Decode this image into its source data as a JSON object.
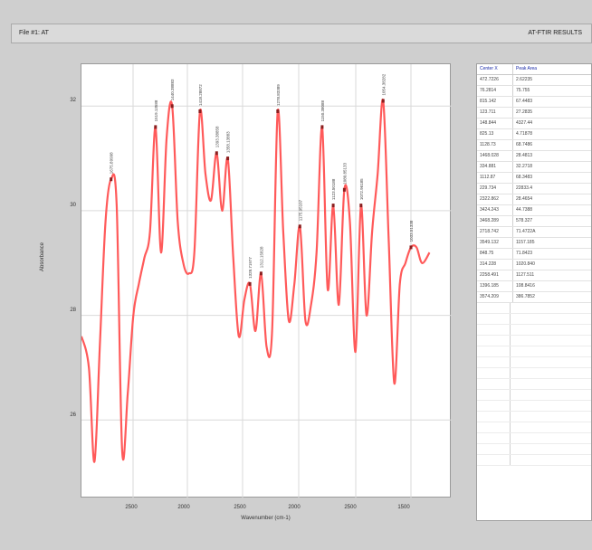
{
  "window": {
    "title_left": "File #1: AT",
    "title_right": "AT-FTIR RESULTS"
  },
  "chart": {
    "xlabel": "Wavenumber (cm-1)",
    "ylabel": "Absorbance",
    "xticks": [
      "2500",
      "2000",
      "2500",
      "2000",
      "2500",
      "1500",
      "1000"
    ],
    "yticks": [
      "32",
      "30",
      "28",
      "26"
    ],
    "line_color": "#ff5a5a"
  },
  "chart_data": {
    "type": "line",
    "series": [
      {
        "values": [
          [
            0.0,
            27.6
          ],
          [
            0.02,
            27.0
          ],
          [
            0.035,
            25.2
          ],
          [
            0.05,
            27.5
          ],
          [
            0.065,
            29.8
          ],
          [
            0.08,
            30.6
          ],
          [
            0.095,
            30.1
          ],
          [
            0.11,
            25.4
          ],
          [
            0.125,
            26.5
          ],
          [
            0.14,
            28.0
          ],
          [
            0.155,
            28.6
          ],
          [
            0.17,
            29.1
          ],
          [
            0.185,
            29.6
          ],
          [
            0.2,
            31.6
          ],
          [
            0.215,
            29.2
          ],
          [
            0.23,
            31.4
          ],
          [
            0.245,
            32.0
          ],
          [
            0.26,
            29.8
          ],
          [
            0.275,
            29.0
          ],
          [
            0.29,
            28.8
          ],
          [
            0.305,
            29.2
          ],
          [
            0.32,
            31.9
          ],
          [
            0.335,
            30.7
          ],
          [
            0.35,
            30.2
          ],
          [
            0.365,
            31.1
          ],
          [
            0.38,
            30.0
          ],
          [
            0.395,
            31.0
          ],
          [
            0.41,
            29.1
          ],
          [
            0.425,
            27.6
          ],
          [
            0.44,
            28.3
          ],
          [
            0.455,
            28.6
          ],
          [
            0.47,
            27.7
          ],
          [
            0.485,
            28.8
          ],
          [
            0.5,
            27.4
          ],
          [
            0.515,
            27.7
          ],
          [
            0.53,
            31.9
          ],
          [
            0.545,
            29.6
          ],
          [
            0.56,
            27.9
          ],
          [
            0.575,
            28.6
          ],
          [
            0.59,
            29.7
          ],
          [
            0.605,
            27.9
          ],
          [
            0.62,
            28.2
          ],
          [
            0.635,
            29.2
          ],
          [
            0.65,
            31.6
          ],
          [
            0.665,
            28.5
          ],
          [
            0.68,
            30.1
          ],
          [
            0.695,
            28.2
          ],
          [
            0.71,
            30.4
          ],
          [
            0.725,
            29.8
          ],
          [
            0.74,
            27.3
          ],
          [
            0.755,
            30.1
          ],
          [
            0.77,
            28.0
          ],
          [
            0.785,
            29.6
          ],
          [
            0.8,
            30.7
          ],
          [
            0.815,
            32.1
          ],
          [
            0.83,
            29.4
          ],
          [
            0.845,
            26.7
          ],
          [
            0.86,
            28.6
          ],
          [
            0.875,
            29.0
          ],
          [
            0.89,
            29.3
          ],
          [
            0.905,
            29.3
          ],
          [
            0.92,
            29.0
          ],
          [
            0.94,
            29.2
          ]
        ]
      }
    ],
    "peaks": [
      {
        "label": "1675.89998"
      },
      {
        "label": "1519.13588"
      },
      {
        "label": "1440.38883"
      },
      {
        "label": "1418.28872"
      },
      {
        "label": "1393.38858"
      },
      {
        "label": "1358.13883"
      },
      {
        "label": "1328.71977"
      },
      {
        "label": "1312.15828"
      },
      {
        "label": "1278.83389"
      },
      {
        "label": "1175.95107"
      },
      {
        "label": "1150.38088"
      },
      {
        "label": "1123.50188"
      },
      {
        "label": "1080.85133"
      },
      {
        "label": "1072.96185"
      },
      {
        "label": "1054.38282"
      },
      {
        "label": "1033.51338"
      },
      {
        "label": "1013.13803"
      },
      {
        "label": "997.95188"
      },
      {
        "label": "983.8776"
      },
      {
        "label": "960.68786"
      },
      {
        "label": "898.59896"
      }
    ],
    "xlim": [
      0,
      1
    ],
    "ylim": [
      24.5,
      32.8
    ],
    "grid": true
  },
  "table": {
    "headers": [
      "Center X",
      "Peak Area"
    ],
    "rows": [
      [
        "472.7226",
        "2.62235"
      ],
      [
        "76.2814",
        "75.755"
      ],
      [
        "815.142",
        "67.4483"
      ],
      [
        "123.711",
        "27.2835"
      ],
      [
        "148.844",
        "4327.44"
      ],
      [
        "825.13",
        "4.71878"
      ],
      [
        "1128.73",
        "68.7486"
      ],
      [
        "1468.028",
        "28.4813"
      ],
      [
        "334.881",
        "32.2718"
      ],
      [
        "1112.87",
        "68.3483"
      ],
      [
        "229.734",
        "22833.4"
      ],
      [
        "2322.862",
        "28.4654"
      ],
      [
        "3424.243",
        "44.7388"
      ],
      [
        "3468.289",
        "578.327"
      ],
      [
        "2718.742",
        "71.4722A"
      ],
      [
        "3549.132",
        "1157.185"
      ],
      [
        "848.75",
        "71.8423"
      ],
      [
        "314.228",
        "1020.840"
      ],
      [
        "2258.491",
        "1127.511"
      ],
      [
        "1396.185",
        "108.8416"
      ],
      [
        "3574.209",
        "386.7852"
      ]
    ],
    "empty_rows": 15
  }
}
